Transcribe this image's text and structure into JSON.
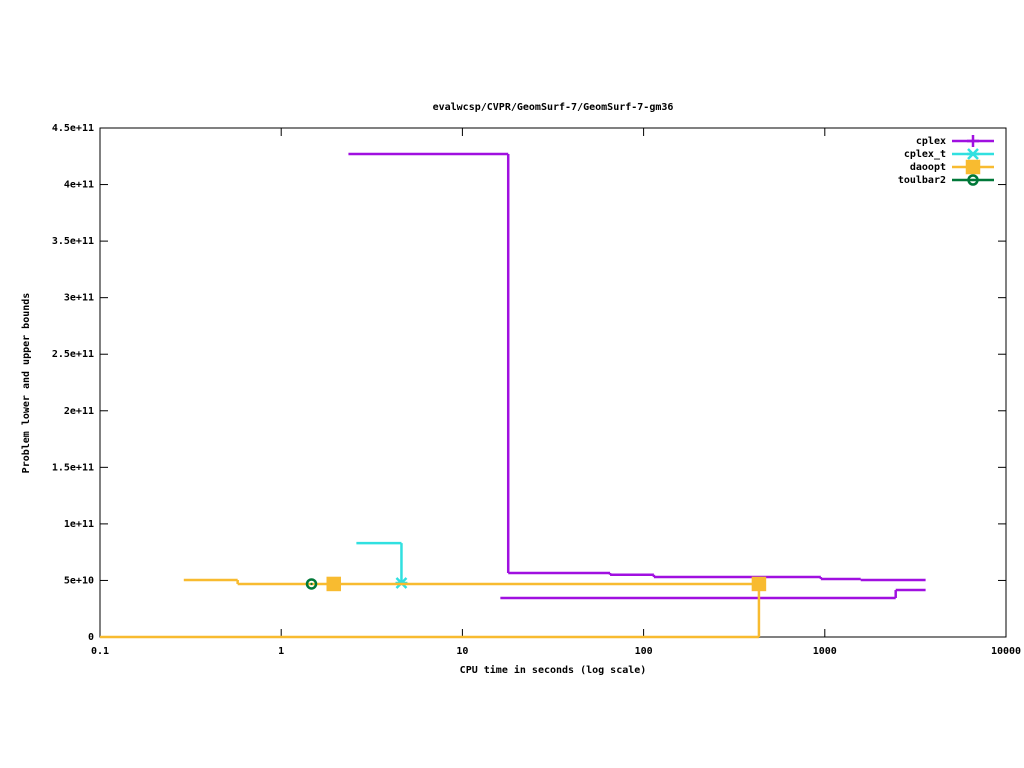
{
  "chart_data": {
    "type": "step",
    "title": "evalwcsp/CVPR/GeomSurf-7/GeomSurf-7-gm36",
    "x_label": "CPU time in seconds (log scale)",
    "y_label": "Problem lower and upper bounds",
    "x_log_scale": true,
    "xlim": [
      0.1,
      10000
    ],
    "xticks": [
      0.1,
      1,
      10,
      100,
      1000,
      10000
    ],
    "ylim": [
      0,
      450000000000
    ],
    "yticks": [
      0,
      {
        "value": 50000000000,
        "label": "5e+10"
      },
      {
        "value": 100000000000,
        "label": "1e+11"
      },
      {
        "value": 150000000000,
        "label": "1.5e+11"
      },
      {
        "value": 200000000000,
        "label": "2e+11"
      },
      {
        "value": 250000000000,
        "label": "2.5e+11"
      },
      {
        "value": 300000000000,
        "label": "3e+11"
      },
      {
        "value": 350000000000,
        "label": "3.5e+11"
      },
      {
        "value": 400000000000,
        "label": "4e+11"
      },
      {
        "value": 450000000000,
        "label": "4.5e+11"
      }
    ],
    "legend": "top-right",
    "series": [
      {
        "name": "cplex",
        "color": "#a010e0",
        "marker": "plus",
        "upper": {
          "x": [
            2.35,
            17.9,
            65.3,
            114,
            951,
            1578,
            3600
          ],
          "values": [
            427000000000,
            56600000000,
            55000000000,
            53000000000,
            51300000000,
            50400000000,
            50400000000
          ]
        },
        "lower": {
          "x": [
            16.2,
            2462,
            3600
          ],
          "values": [
            34500000000,
            41500000000,
            41500000000
          ]
        }
      },
      {
        "name": "cplex_t",
        "color": "#30e0e0",
        "marker": "star",
        "upper": {
          "x": [
            2.6,
            4.61,
            4.61
          ],
          "values": [
            83000000000,
            47700000000,
            47700000000
          ]
        },
        "points": {
          "x": [
            4.61
          ],
          "values": [
            47700000000
          ]
        }
      },
      {
        "name": "daoopt",
        "color": "#f8bb30",
        "marker": "square",
        "upper": {
          "x": [
            0.29,
            0.575,
            433,
            433
          ],
          "values": [
            50400000000,
            46900000000,
            46900000000,
            0
          ]
        },
        "lower": {
          "x": [
            0.1,
            433
          ],
          "values": [
            0,
            0
          ]
        },
        "points": {
          "x": [
            1.95,
            433
          ],
          "values": [
            46900000000,
            46900000000
          ]
        }
      },
      {
        "name": "toulbar2",
        "color": "#007838",
        "marker": "circle",
        "points": {
          "x": [
            1.47
          ],
          "values": [
            46900000000
          ]
        }
      }
    ]
  }
}
